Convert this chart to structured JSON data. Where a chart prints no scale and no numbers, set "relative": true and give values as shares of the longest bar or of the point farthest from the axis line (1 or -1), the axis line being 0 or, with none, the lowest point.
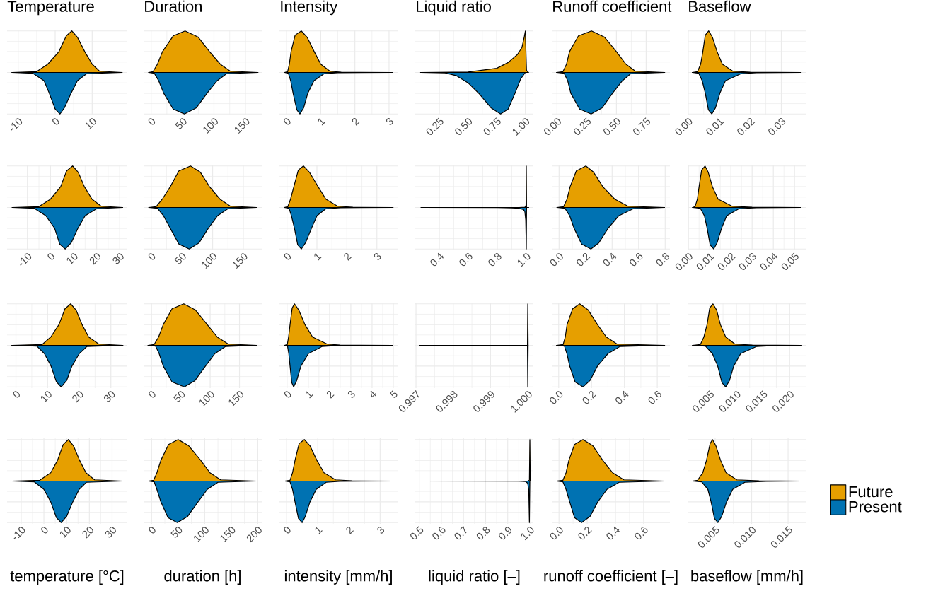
{
  "chart_data": [
    {
      "type": "area",
      "relative": true,
      "grid": true,
      "tick_labels": "x",
      "title": "Temperature",
      "xlim": [
        -13,
        19.5
      ],
      "xticks": [
        -10,
        0,
        10
      ],
      "series": [
        {
          "color": "#e69f00",
          "x": [
            -11.7,
            -5,
            -2,
            1,
            3,
            4.5,
            6,
            8,
            10,
            12,
            18.1
          ],
          "values": [
            0,
            0.02,
            0.2,
            0.5,
            0.88,
            1,
            0.85,
            0.5,
            0.2,
            0.03,
            0
          ]
        },
        {
          "color": "#0072b2",
          "x": [
            -11.7,
            -6,
            -3,
            -1.6,
            0,
            1.3,
            2.5,
            4.3,
            6,
            8.5,
            18.1
          ],
          "values": [
            0,
            -0.02,
            -0.2,
            -0.5,
            -0.88,
            -1,
            -0.85,
            -0.5,
            -0.2,
            -0.03,
            0
          ]
        }
      ]
    },
    {
      "type": "area",
      "relative": true,
      "grid": true,
      "tick_labels": "x",
      "title": "Duration",
      "xlim": [
        -12,
        176
      ],
      "xticks": [
        0,
        50,
        100,
        150
      ],
      "series": [
        {
          "color": "#e69f00",
          "x": [
            -4,
            3,
            10,
            18,
            35,
            54,
            75,
            93,
            110,
            126,
            170
          ],
          "values": [
            0,
            0.02,
            0.2,
            0.5,
            0.88,
            1,
            0.85,
            0.5,
            0.2,
            0.03,
            0
          ]
        },
        {
          "color": "#0072b2",
          "x": [
            -4,
            5,
            12,
            20,
            35,
            53,
            72,
            89,
            105,
            120,
            170
          ],
          "values": [
            0,
            -0.02,
            -0.2,
            -0.5,
            -0.88,
            -1,
            -0.85,
            -0.5,
            -0.2,
            -0.03,
            0
          ]
        }
      ]
    },
    {
      "type": "area",
      "relative": true,
      "grid": true,
      "tick_labels": "x",
      "title": "Intensity",
      "xlim": [
        -0.21,
        3.25
      ],
      "xticks": [
        0,
        1,
        2,
        3
      ],
      "series": [
        {
          "color": "#e69f00",
          "x": [
            -0.06,
            0.03,
            0.08,
            0.13,
            0.25,
            0.43,
            0.6,
            0.81,
            1.0,
            1.27,
            1.6,
            3.1
          ],
          "values": [
            0,
            0.02,
            0.2,
            0.5,
            0.9,
            1,
            0.85,
            0.5,
            0.2,
            0.03,
            0.005,
            0
          ]
        },
        {
          "color": "#0072b2",
          "x": [
            -0.06,
            0.05,
            0.12,
            0.19,
            0.3,
            0.39,
            0.5,
            0.62,
            0.8,
            1.1,
            1.5,
            3.1
          ],
          "values": [
            0,
            -0.02,
            -0.2,
            -0.5,
            -0.9,
            -1,
            -0.85,
            -0.5,
            -0.2,
            -0.03,
            -0.005,
            0
          ]
        }
      ]
    },
    {
      "type": "area",
      "relative": true,
      "grid": true,
      "tick_labels": "x",
      "title": "Liquid ratio",
      "xlim": [
        0.04,
        1.07
      ],
      "xticks": [
        0.25,
        {
          "value": 0.5,
          "label": "0.50"
        },
        0.75,
        {
          "value": 1,
          "label": "1.00"
        }
      ],
      "series": [
        {
          "color": "#e69f00",
          "x": [
            0.086,
            0.5,
            0.75,
            0.85,
            0.93,
            0.97,
            0.99,
            1.0,
            1.01,
            1.027
          ],
          "values": [
            0,
            0.01,
            0.1,
            0.24,
            0.43,
            0.6,
            0.85,
            1,
            0.05,
            0
          ]
        },
        {
          "color": "#0072b2",
          "x": [
            0.086,
            0.3,
            0.4,
            0.5,
            0.6,
            0.7,
            0.784,
            0.85,
            0.91,
            0.96,
            1.0,
            1.027
          ],
          "values": [
            0,
            -0.01,
            -0.08,
            -0.25,
            -0.52,
            -0.85,
            -1,
            -0.88,
            -0.5,
            -0.15,
            0,
            0
          ]
        }
      ]
    },
    {
      "type": "area",
      "relative": true,
      "grid": true,
      "tick_labels": "x",
      "title": "Runoff coefficient",
      "xlim": [
        -0.044,
        0.95
      ],
      "xticks": [
        {
          "value": 0,
          "label": "0.00"
        },
        0.25,
        {
          "value": 0.5,
          "label": "0.50"
        },
        0.75
      ],
      "series": [
        {
          "color": "#e69f00",
          "x": [
            -0.004,
            0.05,
            0.08,
            0.105,
            0.18,
            0.29,
            0.4,
            0.5,
            0.58,
            0.66,
            0.906
          ],
          "values": [
            0,
            0.02,
            0.2,
            0.5,
            0.88,
            1,
            0.85,
            0.5,
            0.2,
            0.03,
            0
          ]
        },
        {
          "color": "#0072b2",
          "x": [
            -0.004,
            0.06,
            0.09,
            0.116,
            0.19,
            0.287,
            0.38,
            0.467,
            0.55,
            0.62,
            0.906
          ],
          "values": [
            0,
            -0.02,
            -0.2,
            -0.5,
            -0.88,
            -1,
            -0.85,
            -0.5,
            -0.2,
            -0.03,
            0
          ]
        }
      ]
    },
    {
      "type": "area",
      "relative": true,
      "grid": true,
      "tick_labels": "x",
      "title": "Baseflow",
      "xlim": [
        -0.0002,
        0.0381
      ],
      "xticks": [
        {
          "value": 0,
          "label": "0.00"
        },
        0.01,
        0.02,
        0.03
      ],
      "series": [
        {
          "color": "#e69f00",
          "x": [
            0.0013,
            0.003,
            0.004,
            0.0047,
            0.0055,
            0.0066,
            0.0078,
            0.0093,
            0.011,
            0.0144,
            0.02,
            0.0364
          ],
          "values": [
            0,
            0.02,
            0.2,
            0.5,
            0.9,
            1,
            0.85,
            0.5,
            0.2,
            0.03,
            0.005,
            0
          ]
        },
        {
          "color": "#0072b2",
          "x": [
            0.0013,
            0.0034,
            0.0045,
            0.0055,
            0.0065,
            0.0076,
            0.0088,
            0.0102,
            0.012,
            0.017,
            0.022,
            0.0364
          ],
          "values": [
            0,
            -0.02,
            -0.2,
            -0.5,
            -0.9,
            -1,
            -0.85,
            -0.5,
            -0.2,
            -0.03,
            -0.005,
            0
          ]
        }
      ]
    },
    {
      "type": "area",
      "relative": true,
      "grid": true,
      "tick_labels": "x",
      "xlim": [
        -18.8,
        33.3
      ],
      "xticks": [
        -10,
        0,
        10,
        20,
        30
      ],
      "series": [
        {
          "color": "#e69f00",
          "x": [
            -16.6,
            -5,
            0,
            4.4,
            7,
            9.6,
            12,
            14.7,
            18,
            22,
            31.3
          ],
          "values": [
            0,
            0.02,
            0.2,
            0.5,
            0.88,
            1,
            0.85,
            0.5,
            0.2,
            0.03,
            0
          ]
        },
        {
          "color": "#0072b2",
          "x": [
            -16.6,
            -7,
            -2,
            1.8,
            4,
            6.4,
            9,
            11.9,
            15,
            20,
            31.3
          ],
          "values": [
            0,
            -0.02,
            -0.2,
            -0.5,
            -0.88,
            -1,
            -0.85,
            -0.5,
            -0.2,
            -0.03,
            0
          ]
        }
      ]
    },
    {
      "type": "area",
      "relative": true,
      "grid": true,
      "tick_labels": "x",
      "xlim": [
        -12.4,
        180
      ],
      "xticks": [
        0,
        50,
        100,
        150
      ],
      "series": [
        {
          "color": "#e69f00",
          "x": [
            -4,
            8,
            18,
            31,
            45,
            64,
            80,
            95,
            112,
            129,
            172
          ],
          "values": [
            0,
            0.02,
            0.2,
            0.5,
            0.88,
            1,
            0.85,
            0.5,
            0.2,
            0.03,
            0
          ]
        },
        {
          "color": "#0072b2",
          "x": [
            -4,
            10,
            20,
            31,
            45,
            62,
            78,
            93,
            108,
            125,
            172
          ],
          "values": [
            0,
            -0.02,
            -0.2,
            -0.5,
            -0.88,
            -1,
            -0.85,
            -0.5,
            -0.2,
            -0.03,
            0
          ]
        }
      ]
    },
    {
      "type": "area",
      "relative": true,
      "grid": true,
      "tick_labels": "x",
      "xlim": [
        -0.25,
        3.69
      ],
      "xticks": [
        0,
        1,
        2,
        3
      ],
      "series": [
        {
          "color": "#e69f00",
          "x": [
            -0.09,
            0.03,
            0.12,
            0.23,
            0.38,
            0.55,
            0.75,
            1.04,
            1.3,
            1.69,
            2.2,
            3.54
          ],
          "values": [
            0,
            0.02,
            0.2,
            0.5,
            0.9,
            1,
            0.85,
            0.5,
            0.2,
            0.03,
            0.005,
            0
          ]
        },
        {
          "color": "#0072b2",
          "x": [
            -0.09,
            0.07,
            0.15,
            0.25,
            0.36,
            0.48,
            0.62,
            0.82,
            1.0,
            1.3,
            1.8,
            3.54
          ],
          "values": [
            0,
            -0.02,
            -0.2,
            -0.5,
            -0.9,
            -1,
            -0.85,
            -0.5,
            -0.2,
            -0.03,
            -0.005,
            0
          ]
        }
      ]
    },
    {
      "type": "area",
      "relative": true,
      "grid": true,
      "tick_labels": "x",
      "xlim": [
        0.234,
        1.049
      ],
      "xticks": [
        0.4,
        0.6,
        0.8,
        {
          "value": 1,
          "label": "1.0"
        }
      ],
      "series": [
        {
          "color": "#e69f00",
          "x": [
            0.274,
            0.95,
            0.99,
            0.998,
            1.0,
            1.002,
            1.016
          ],
          "values": [
            0,
            0,
            0.005,
            0.05,
            1,
            0,
            0
          ]
        },
        {
          "color": "#0072b2",
          "x": [
            0.274,
            0.8,
            0.9,
            0.95,
            0.98,
            0.99,
            0.996,
            1.0,
            1.002,
            1.016
          ],
          "values": [
            0,
            -0.002,
            -0.01,
            -0.02,
            -0.05,
            -0.1,
            -0.3,
            -1,
            0,
            0
          ]
        }
      ]
    },
    {
      "type": "area",
      "relative": true,
      "grid": true,
      "tick_labels": "x",
      "xlim": [
        -0.055,
        0.836
      ],
      "xticks": [
        {
          "value": 0,
          "label": "0.0"
        },
        0.2,
        0.4,
        0.6,
        0.8
      ],
      "series": [
        {
          "color": "#e69f00",
          "x": [
            -0.016,
            0.034,
            0.06,
            0.083,
            0.13,
            0.202,
            0.26,
            0.33,
            0.42,
            0.52,
            0.796
          ],
          "values": [
            0,
            0.02,
            0.2,
            0.5,
            0.88,
            1,
            0.85,
            0.5,
            0.2,
            0.03,
            0
          ]
        },
        {
          "color": "#0072b2",
          "x": [
            -0.016,
            0.044,
            0.08,
            0.113,
            0.17,
            0.24,
            0.3,
            0.37,
            0.45,
            0.56,
            0.796
          ],
          "values": [
            0,
            -0.02,
            -0.2,
            -0.5,
            -0.88,
            -1,
            -0.85,
            -0.5,
            -0.2,
            -0.03,
            0
          ]
        }
      ]
    },
    {
      "type": "area",
      "relative": true,
      "grid": true,
      "tick_labels": "x",
      "xlim": [
        -0.0004,
        0.0556
      ],
      "xticks": [
        {
          "value": 0,
          "label": "0.00"
        },
        0.01,
        0.02,
        0.03,
        0.04,
        0.05
      ],
      "series": [
        {
          "color": "#e69f00",
          "x": [
            0.0019,
            0.0031,
            0.0042,
            0.005,
            0.0062,
            0.0078,
            0.0093,
            0.0113,
            0.014,
            0.0206,
            0.03,
            0.0531
          ],
          "values": [
            0,
            0.02,
            0.2,
            0.5,
            0.9,
            1,
            0.85,
            0.5,
            0.2,
            0.03,
            0.005,
            0
          ]
        },
        {
          "color": "#0072b2",
          "x": [
            0.0019,
            0.0056,
            0.0075,
            0.0088,
            0.0102,
            0.0119,
            0.0135,
            0.0156,
            0.018,
            0.0238,
            0.032,
            0.0531
          ],
          "values": [
            0,
            -0.02,
            -0.2,
            -0.5,
            -0.9,
            -1,
            -0.85,
            -0.5,
            -0.2,
            -0.03,
            -0.005,
            0
          ]
        }
      ]
    },
    {
      "type": "area",
      "relative": true,
      "grid": true,
      "tick_labels": "x",
      "xlim": [
        -2.8,
        35.2
      ],
      "xticks": [
        0,
        10,
        20,
        30
      ],
      "series": [
        {
          "color": "#e69f00",
          "x": [
            -1.3,
            8.3,
            11,
            13.6,
            15.5,
            17.3,
            19,
            20.9,
            23,
            26.2,
            33.8
          ],
          "values": [
            0,
            0.02,
            0.2,
            0.5,
            0.88,
            1,
            0.85,
            0.5,
            0.2,
            0.03,
            0
          ]
        },
        {
          "color": "#0072b2",
          "x": [
            -1.3,
            6.6,
            9,
            11.1,
            12.8,
            14.3,
            16,
            17.7,
            20,
            22.4,
            33.8
          ],
          "values": [
            0,
            -0.02,
            -0.2,
            -0.5,
            -0.88,
            -1,
            -0.85,
            -0.5,
            -0.2,
            -0.03,
            0
          ]
        }
      ]
    },
    {
      "type": "area",
      "relative": true,
      "grid": true,
      "tick_labels": "x",
      "xlim": [
        -13.5,
        188
      ],
      "xticks": [
        0,
        50,
        100,
        150
      ],
      "series": [
        {
          "color": "#e69f00",
          "x": [
            -6,
            4.5,
            12,
            20,
            35,
            55,
            75,
            95,
            112,
            131,
            180
          ],
          "values": [
            0,
            0.02,
            0.2,
            0.5,
            0.88,
            1,
            0.85,
            0.5,
            0.2,
            0.03,
            0
          ]
        },
        {
          "color": "#0072b2",
          "x": [
            -6,
            7,
            13,
            20,
            35,
            56,
            74,
            92,
            108,
            126,
            180
          ],
          "values": [
            0,
            -0.02,
            -0.2,
            -0.5,
            -0.88,
            -1,
            -0.85,
            -0.5,
            -0.2,
            -0.03,
            0
          ]
        }
      ]
    },
    {
      "type": "area",
      "relative": true,
      "grid": true,
      "tick_labels": "x",
      "xlim": [
        -0.36,
        5.2
      ],
      "xticks": [
        0,
        1,
        2,
        3,
        4,
        5
      ],
      "series": [
        {
          "color": "#e69f00",
          "x": [
            -0.12,
            0.01,
            0.07,
            0.14,
            0.24,
            0.35,
            0.55,
            0.84,
            1.2,
            1.89,
            2.5,
            4.98
          ],
          "values": [
            0,
            0.02,
            0.2,
            0.5,
            0.9,
            1,
            0.85,
            0.5,
            0.2,
            0.03,
            0.005,
            0
          ]
        },
        {
          "color": "#0072b2",
          "x": [
            -0.12,
            0.02,
            0.08,
            0.14,
            0.22,
            0.31,
            0.45,
            0.65,
            1.0,
            1.64,
            2.3,
            4.98
          ],
          "values": [
            0,
            -0.02,
            -0.2,
            -0.5,
            -0.9,
            -1,
            -0.85,
            -0.5,
            -0.2,
            -0.03,
            -0.005,
            0
          ]
        }
      ]
    },
    {
      "type": "area",
      "relative": true,
      "grid": true,
      "tick_labels": "x",
      "xlim": [
        0.99698,
        1.00015
      ],
      "xticks": [
        0.997,
        0.998,
        0.999,
        {
          "value": 1,
          "label": "1.000"
        }
      ],
      "series": [
        {
          "color": "#e69f00",
          "x": [
            0.9971,
            0.99999,
            1.0,
            1.00001
          ],
          "values": [
            0,
            0,
            1,
            0
          ]
        },
        {
          "color": "#0072b2",
          "x": [
            0.9971,
            0.99999,
            1.0,
            1.00001
          ],
          "values": [
            0,
            0,
            -1,
            0
          ]
        }
      ]
    },
    {
      "type": "area",
      "relative": true,
      "grid": true,
      "tick_labels": "x",
      "xlim": [
        -0.042,
        0.677
      ],
      "xticks": [
        {
          "value": 0,
          "label": "0.0"
        },
        0.2,
        0.4,
        0.6
      ],
      "series": [
        {
          "color": "#e69f00",
          "x": [
            -0.013,
            0.027,
            0.04,
            0.051,
            0.085,
            0.128,
            0.18,
            0.236,
            0.29,
            0.356,
            0.645
          ],
          "values": [
            0,
            0.02,
            0.2,
            0.5,
            0.88,
            1,
            0.85,
            0.5,
            0.2,
            0.03,
            0
          ]
        },
        {
          "color": "#0072b2",
          "x": [
            -0.013,
            0.035,
            0.05,
            0.067,
            0.1,
            0.148,
            0.19,
            0.236,
            0.3,
            0.372,
            0.645
          ],
          "values": [
            0,
            -0.02,
            -0.2,
            -0.5,
            -0.88,
            -1,
            -0.85,
            -0.5,
            -0.2,
            -0.03,
            0
          ]
        }
      ]
    },
    {
      "type": "area",
      "relative": true,
      "grid": true,
      "tick_labels": "x",
      "xlim": [
        0.00085,
        0.02315
      ],
      "xticks": [
        0.005,
        {
          "value": 0.01,
          "label": "0.010"
        },
        0.015,
        {
          "value": 0.02,
          "label": "0.020"
        }
      ],
      "series": [
        {
          "color": "#e69f00",
          "x": [
            0.00175,
            0.00325,
            0.0039,
            0.0045,
            0.005,
            0.0056,
            0.0063,
            0.007,
            0.008,
            0.00975,
            0.013,
            0.02225
          ],
          "values": [
            0,
            0.02,
            0.2,
            0.5,
            0.9,
            1,
            0.85,
            0.5,
            0.2,
            0.03,
            0.005,
            0
          ]
        },
        {
          "color": "#0072b2",
          "x": [
            0.00175,
            0.0042,
            0.0055,
            0.0065,
            0.0073,
            0.008,
            0.0087,
            0.0095,
            0.0108,
            0.01375,
            0.017,
            0.02225
          ],
          "values": [
            0,
            -0.02,
            -0.2,
            -0.5,
            -0.9,
            -1,
            -0.85,
            -0.5,
            -0.2,
            -0.03,
            -0.005,
            0
          ]
        }
      ]
    },
    {
      "type": "area",
      "relative": true,
      "grid": true,
      "tick_labels": "x",
      "xlabel": "temperature [°C]",
      "xlim": [
        -16.2,
        36.7
      ],
      "xticks": [
        -10,
        0,
        10,
        20,
        30
      ],
      "series": [
        {
          "color": "#e69f00",
          "x": [
            -14.1,
            -1.8,
            3,
            6,
            8.5,
            10.8,
            13,
            15.7,
            18.5,
            22.3,
            34.6
          ],
          "values": [
            0,
            0.02,
            0.2,
            0.5,
            0.88,
            1,
            0.85,
            0.5,
            0.2,
            0.03,
            0
          ]
        },
        {
          "color": "#0072b2",
          "x": [
            -14.1,
            -4.2,
            0,
            3,
            5.5,
            7.6,
            10,
            12.7,
            15.5,
            18.7,
            34.6
          ],
          "values": [
            0,
            -0.02,
            -0.2,
            -0.5,
            -0.88,
            -1,
            -0.85,
            -0.5,
            -0.2,
            -0.03,
            0
          ]
        }
      ]
    },
    {
      "type": "area",
      "relative": true,
      "grid": true,
      "tick_labels": "x",
      "xlabel": "duration [h]",
      "xlim": [
        -15,
        207.5
      ],
      "xticks": [
        0,
        50,
        100,
        150,
        200
      ],
      "series": [
        {
          "color": "#e69f00",
          "x": [
            -6,
            4,
            10,
            17.5,
            32,
            50,
            70,
            92.5,
            110,
            130,
            197.5
          ],
          "values": [
            0,
            0.02,
            0.2,
            0.5,
            0.88,
            1,
            0.85,
            0.5,
            0.2,
            0.03,
            0
          ]
        },
        {
          "color": "#0072b2",
          "x": [
            -6,
            5,
            10,
            17.5,
            31,
            48.5,
            68,
            87.5,
            105,
            125,
            197.5
          ],
          "values": [
            0,
            -0.02,
            -0.2,
            -0.5,
            -0.88,
            -1,
            -0.85,
            -0.5,
            -0.2,
            -0.03,
            0
          ]
        }
      ]
    },
    {
      "type": "area",
      "relative": true,
      "grid": true,
      "tick_labels": "x",
      "xlabel": "intensity [mm/h]",
      "xlim": [
        -0.23,
        3.56
      ],
      "xticks": [
        0,
        1,
        2,
        3
      ],
      "series": [
        {
          "color": "#e69f00",
          "x": [
            -0.06,
            0.11,
            0.19,
            0.27,
            0.4,
            0.57,
            0.75,
            0.97,
            1.2,
            1.57,
            2.1,
            3.43
          ],
          "values": [
            0,
            0.02,
            0.2,
            0.5,
            0.9,
            1,
            0.85,
            0.5,
            0.2,
            0.03,
            0.005,
            0
          ]
        },
        {
          "color": "#0072b2",
          "x": [
            -0.06,
            0.11,
            0.19,
            0.27,
            0.38,
            0.5,
            0.6,
            0.75,
            0.95,
            1.27,
            1.7,
            3.43
          ],
          "values": [
            0,
            -0.02,
            -0.2,
            -0.5,
            -0.9,
            -1,
            -0.85,
            -0.5,
            -0.2,
            -0.03,
            -0.005,
            0
          ]
        }
      ]
    },
    {
      "type": "area",
      "relative": true,
      "grid": true,
      "tick_labels": "x",
      "xlabel": "liquid ratio [–]",
      "xlim": [
        0.482,
        1.016
      ],
      "xticks": [
        0.5,
        0.6,
        0.7,
        0.8,
        0.9,
        {
          "value": 1,
          "label": "1.0"
        }
      ],
      "series": [
        {
          "color": "#e69f00",
          "x": [
            0.502,
            0.99,
            0.998,
            1.0,
            1.002,
            1.004
          ],
          "values": [
            0,
            0,
            0.02,
            1,
            0,
            0
          ]
        },
        {
          "color": "#0072b2",
          "x": [
            0.502,
            0.95,
            0.98,
            0.99,
            0.995,
            0.998,
            1.0,
            1.004
          ],
          "values": [
            0,
            -0.002,
            -0.01,
            -0.05,
            -0.2,
            -1,
            0,
            0
          ]
        }
      ]
    },
    {
      "type": "area",
      "relative": true,
      "grid": true,
      "tick_labels": "x",
      "xlabel": "runoff coefficient [–]",
      "xlim": [
        -0.051,
        0.786
      ],
      "xticks": [
        {
          "value": 0,
          "label": "0.0"
        },
        0.2,
        0.4,
        0.6
      ],
      "series": [
        {
          "color": "#e69f00",
          "x": [
            -0.019,
            0.028,
            0.05,
            0.07,
            0.11,
            0.17,
            0.24,
            0.31,
            0.38,
            0.46,
            0.748
          ],
          "values": [
            0,
            0.02,
            0.2,
            0.5,
            0.88,
            1,
            0.85,
            0.5,
            0.2,
            0.03,
            0
          ]
        },
        {
          "color": "#0072b2",
          "x": [
            -0.019,
            0.028,
            0.05,
            0.076,
            0.11,
            0.16,
            0.22,
            0.275,
            0.34,
            0.426,
            0.748
          ],
          "values": [
            0,
            -0.02,
            -0.2,
            -0.5,
            -0.88,
            -1,
            -0.85,
            -0.5,
            -0.2,
            -0.03,
            0
          ]
        }
      ]
    },
    {
      "type": "area",
      "relative": true,
      "grid": true,
      "tick_labels": "x",
      "xlabel": "baseflow [mm/h]",
      "legend": "right",
      "xlim": [
        0.00122,
        0.01752
      ],
      "xticks": [
        0.005,
        {
          "value": 0.01,
          "label": "0.010"
        },
        0.015
      ],
      "series": [
        {
          "name": "Future",
          "color": "#e69f00",
          "x": [
            0.00185,
            0.00259,
            0.0033,
            0.00381,
            0.0043,
            0.00463,
            0.0051,
            0.00574,
            0.0065,
            0.00796,
            0.011,
            0.01685
          ],
          "values": [
            0,
            0.02,
            0.2,
            0.5,
            0.9,
            1,
            0.85,
            0.5,
            0.2,
            0.03,
            0.005,
            0
          ]
        },
        {
          "name": "Present",
          "color": "#0072b2",
          "x": [
            0.00185,
            0.00315,
            0.004,
            0.00444,
            0.0049,
            0.00537,
            0.0059,
            0.00656,
            0.0074,
            0.00907,
            0.012,
            0.01685
          ],
          "values": [
            0,
            -0.02,
            -0.2,
            -0.5,
            -0.9,
            -1,
            -0.85,
            -0.5,
            -0.2,
            -0.03,
            -0.005,
            0
          ]
        }
      ]
    }
  ]
}
